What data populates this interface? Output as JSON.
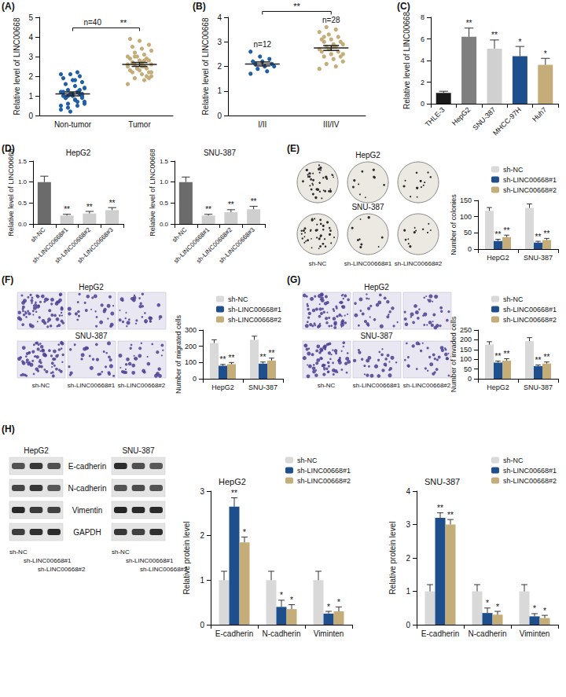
{
  "chart_data": [
    {
      "panel": "(A)",
      "type": "dot",
      "y_label": "Relative level of LINC00668",
      "categories": [
        "Non-tumor",
        "Tumor"
      ],
      "colors": [
        "#1f5fa8",
        "#c4ad78"
      ],
      "values": [
        [
          0.3,
          0.5,
          0.6,
          0.7,
          0.8,
          0.9,
          0.9,
          1.0,
          1.0,
          1.1,
          1.1,
          1.2,
          1.2,
          1.3,
          1.4,
          1.5,
          1.6,
          1.7,
          1.8,
          1.9,
          2.0,
          2.1,
          2.1,
          2.2,
          0.4,
          0.6,
          0.8,
          0.9,
          1.0,
          1.1,
          1.2,
          1.3,
          0.2,
          0.5,
          0.7,
          1.0,
          1.4,
          1.8,
          0.9,
          1.1
        ],
        [
          1.6,
          1.8,
          1.9,
          2.0,
          2.1,
          2.2,
          2.2,
          2.3,
          2.3,
          2.4,
          2.4,
          2.5,
          2.5,
          2.6,
          2.6,
          2.7,
          2.7,
          2.8,
          2.8,
          2.9,
          2.9,
          3.0,
          3.0,
          3.1,
          3.2,
          3.3,
          3.4,
          3.5,
          3.6,
          3.8,
          3.9,
          2.0,
          2.4,
          2.6,
          2.8,
          3.0,
          2.2,
          2.5,
          2.7,
          1.9
        ]
      ],
      "means": [
        1.1,
        2.6
      ],
      "sems": [
        0.1,
        0.1
      ],
      "n_label": "n=40",
      "significance": "**",
      "ylim": [
        0,
        5
      ],
      "yticks": [
        0,
        1,
        2,
        3,
        4,
        5
      ],
      "grid": false
    },
    {
      "panel": "(B)",
      "type": "dot",
      "y_label": "Relative level of LINC00668",
      "categories": [
        "I/II",
        "III/IV"
      ],
      "colors": [
        "#1f5fa8",
        "#c4ad78"
      ],
      "values": [
        [
          1.7,
          1.8,
          1.9,
          2.0,
          2.0,
          2.1,
          2.1,
          2.2,
          2.2,
          2.3,
          2.4,
          2.6
        ],
        [
          1.9,
          2.0,
          2.1,
          2.2,
          2.3,
          2.4,
          2.4,
          2.5,
          2.6,
          2.6,
          2.7,
          2.7,
          2.8,
          2.8,
          2.9,
          2.9,
          3.0,
          3.0,
          3.1,
          3.1,
          3.2,
          3.3,
          3.4,
          3.5,
          3.6,
          2.5,
          2.8,
          3.2
        ]
      ],
      "means": [
        2.1,
        2.75
      ],
      "sems": [
        0.08,
        0.1
      ],
      "n_labels": [
        "n=12",
        "n=28"
      ],
      "significance": "**",
      "ylim": [
        0,
        4
      ],
      "yticks": [
        0,
        1,
        2,
        3,
        4
      ],
      "grid": false
    },
    {
      "panel": "(C)",
      "type": "bar",
      "y_label": "Relative level of LINC00668",
      "categories": [
        "THLE-3",
        "HepG2",
        "SNU-387",
        "MHCC-97H",
        "Huh7"
      ],
      "values": [
        1,
        6.2,
        5.1,
        4.4,
        3.6
      ],
      "errors": [
        0.15,
        0.8,
        0.8,
        0.9,
        0.6
      ],
      "significance": [
        null,
        "**",
        "**",
        "*",
        "*"
      ],
      "colors": [
        "#1a1a1a",
        "#7f7f7f",
        "#d0d0d0",
        "#1f4e8c",
        "#c4ad78"
      ],
      "ylim": [
        0,
        8
      ],
      "yticks": [
        0,
        2,
        4,
        6,
        8
      ],
      "grid": false
    },
    {
      "panel": "(D)",
      "type": "bar",
      "title": "HepG2",
      "y_label": "Relative level of LINC00668",
      "categories": [
        "sh-NC",
        "sh-LINC00668#1",
        "sh-LINC00668#2",
        "sh-LINC00668#3"
      ],
      "values": [
        1,
        0.2,
        0.25,
        0.33
      ],
      "errors": [
        0.14,
        0.03,
        0.05,
        0.06
      ],
      "significance": [
        null,
        "**",
        "**",
        "**"
      ],
      "colors": [
        "#6b6b6b",
        "#cfcfcf",
        "#cfcfcf",
        "#cfcfcf"
      ],
      "ylim": [
        0,
        1.5
      ],
      "yticks": [
        {
          "value": 0,
          "label": "0.0"
        },
        0.5,
        {
          "value": 1,
          "label": "1.0"
        },
        1.5
      ],
      "grid": false
    },
    {
      "type": "bar",
      "title": "SNU-387",
      "y_label": "Relative level of LINC00668",
      "categories": [
        "sh-NC",
        "sh-LINC00668#1",
        "sh-LINC00668#2",
        "sh-LINC00668#3"
      ],
      "values": [
        1,
        0.2,
        0.28,
        0.35
      ],
      "errors": [
        0.12,
        0.03,
        0.06,
        0.07
      ],
      "significance": [
        null,
        "**",
        "**",
        "**"
      ],
      "colors": [
        "#6b6b6b",
        "#cfcfcf",
        "#cfcfcf",
        "#cfcfcf"
      ],
      "ylim": [
        0,
        1.5
      ],
      "yticks": [
        {
          "value": 0,
          "label": "0.0"
        },
        0.5,
        {
          "value": 1,
          "label": "1.0"
        },
        1.5
      ],
      "grid": false
    },
    {
      "type": "bar",
      "y_label": "Number of colonies",
      "categories": [
        "HepG2",
        "SNU-387"
      ],
      "legend": "top-right",
      "series": [
        {
          "name": "sh-NC",
          "color": "#d9d9d9",
          "values": [
            118,
            127
          ],
          "errors": [
            10,
            12
          ],
          "significance": [
            null,
            null
          ]
        },
        {
          "name": "sh-LINC00668#1",
          "color": "#1f4e8c",
          "values": [
            25,
            20
          ],
          "errors": [
            5,
            4
          ],
          "significance": [
            "**",
            "**"
          ]
        },
        {
          "name": "sh-LINC00668#2",
          "color": "#c4ad78",
          "values": [
            37,
            28
          ],
          "errors": [
            6,
            5
          ],
          "significance": [
            "**",
            "**"
          ]
        }
      ],
      "ylim": [
        0,
        150
      ],
      "yticks": [
        0,
        50,
        100,
        150
      ],
      "grid": false
    },
    {
      "type": "bar",
      "y_label": "Number of migrated cells",
      "categories": [
        "HepG2",
        "SNU-387"
      ],
      "legend": "top-right",
      "series": [
        {
          "name": "sh-NC",
          "color": "#d9d9d9",
          "values": [
            220,
            240
          ],
          "errors": [
            20,
            22
          ],
          "significance": [
            null,
            null
          ]
        },
        {
          "name": "sh-LINC00668#1",
          "color": "#1f4e8c",
          "values": [
            80,
            93
          ],
          "errors": [
            8,
            10
          ],
          "significance": [
            "**",
            "**"
          ]
        },
        {
          "name": "sh-LINC00668#2",
          "color": "#c4ad78",
          "values": [
            90,
            112
          ],
          "errors": [
            10,
            15
          ],
          "significance": [
            "**",
            "**"
          ]
        }
      ],
      "ylim": [
        0,
        300
      ],
      "yticks": [
        0,
        100,
        200,
        300
      ],
      "grid": false
    },
    {
      "type": "bar",
      "y_label": "Number of invaded cells",
      "categories": [
        "HepG2",
        "SNU-387"
      ],
      "legend": "top-right",
      "series": [
        {
          "name": "sh-NC",
          "color": "#d9d9d9",
          "values": [
            175,
            193
          ],
          "errors": [
            15,
            18
          ],
          "significance": [
            null,
            null
          ]
        },
        {
          "name": "sh-LINC00668#1",
          "color": "#1f4e8c",
          "values": [
            83,
            65
          ],
          "errors": [
            8,
            6
          ],
          "significance": [
            "**",
            "**"
          ]
        },
        {
          "name": "sh-LINC00668#2",
          "color": "#c4ad78",
          "values": [
            93,
            78
          ],
          "errors": [
            10,
            8
          ],
          "significance": [
            "**",
            "**"
          ]
        }
      ],
      "ylim": [
        0,
        250
      ],
      "yticks": [
        0,
        50,
        100,
        150,
        200,
        250
      ],
      "grid": false
    },
    {
      "type": "bar",
      "title": "HepG2",
      "y_label": "Relative protein level",
      "categories": [
        "E-cadherin",
        "N-cadherin",
        "Viminten"
      ],
      "legend": "top-right",
      "series": [
        {
          "name": "sh-NC",
          "color": "#d9d9d9",
          "values": [
            1,
            1,
            1
          ],
          "errors": [
            0.2,
            0.2,
            0.2
          ],
          "significance": [
            null,
            null,
            null
          ]
        },
        {
          "name": "sh-LINC00668#1",
          "color": "#1f4e8c",
          "values": [
            2.65,
            0.4,
            0.25
          ],
          "errors": [
            0.2,
            0.15,
            0.05
          ],
          "significance": [
            "**",
            "*",
            "*"
          ]
        },
        {
          "name": "sh-LINC00668#2",
          "color": "#c4ad78",
          "values": [
            1.85,
            0.35,
            0.3
          ],
          "errors": [
            0.12,
            0.1,
            0.1
          ],
          "significance": [
            "*",
            "*",
            "*"
          ]
        }
      ],
      "ylim": [
        0,
        3
      ],
      "yticks": [
        0,
        1,
        2,
        3
      ],
      "grid": false
    },
    {
      "type": "bar",
      "title": "SNU-387",
      "y_label": "Relative protein level",
      "categories": [
        "E-cadherin",
        "N-cadherin",
        "Viminten"
      ],
      "legend": "top-right",
      "series": [
        {
          "name": "sh-NC",
          "color": "#d9d9d9",
          "values": [
            1,
            1,
            1
          ],
          "errors": [
            0.2,
            0.2,
            0.2
          ],
          "significance": [
            null,
            null,
            null
          ]
        },
        {
          "name": "sh-LINC00668#1",
          "color": "#1f4e8c",
          "values": [
            3.2,
            0.35,
            0.25
          ],
          "errors": [
            0.15,
            0.15,
            0.08
          ],
          "significance": [
            "**",
            "*",
            "*"
          ]
        },
        {
          "name": "sh-LINC00668#2",
          "color": "#c4ad78",
          "values": [
            3.0,
            0.3,
            0.2
          ],
          "errors": [
            0.15,
            0.1,
            0.08
          ],
          "significance": [
            "**",
            "*",
            "*"
          ]
        }
      ],
      "ylim": [
        0,
        4
      ],
      "yticks": [
        0,
        1,
        2,
        3,
        4
      ],
      "grid": false
    }
  ],
  "image_panels": [
    {
      "panel": "(E)",
      "kind": "colony_plates",
      "row_titles": [
        "HepG2",
        "SNU-387"
      ],
      "column_labels": [
        "sh-NC",
        "sh-LINC00668#1",
        "sh-LINC00668#2"
      ]
    },
    {
      "panel": "(F)",
      "kind": "transwell",
      "row_titles": [
        "HepG2",
        "SNU-387"
      ],
      "column_labels": [
        "sh-NC",
        "sh-LINC00668#1",
        "sh-LINC00668#2"
      ]
    },
    {
      "panel": "(G)",
      "kind": "transwell",
      "row_titles": [
        "HepG2",
        "SNU-387"
      ],
      "column_labels": [
        "sh-NC",
        "sh-LINC00668#1",
        "sh-LINC00668#2"
      ]
    },
    {
      "panel": "(H)",
      "kind": "western_blot",
      "blot_titles": [
        "HepG2",
        "SNU-387"
      ],
      "rows": [
        "E-cadherin",
        "N-cadherin",
        "Vimentin",
        "GAPDH"
      ],
      "lanes": [
        "sh-NC",
        "sh-LINC00668#1",
        "sh-LINC00668#2"
      ]
    }
  ]
}
